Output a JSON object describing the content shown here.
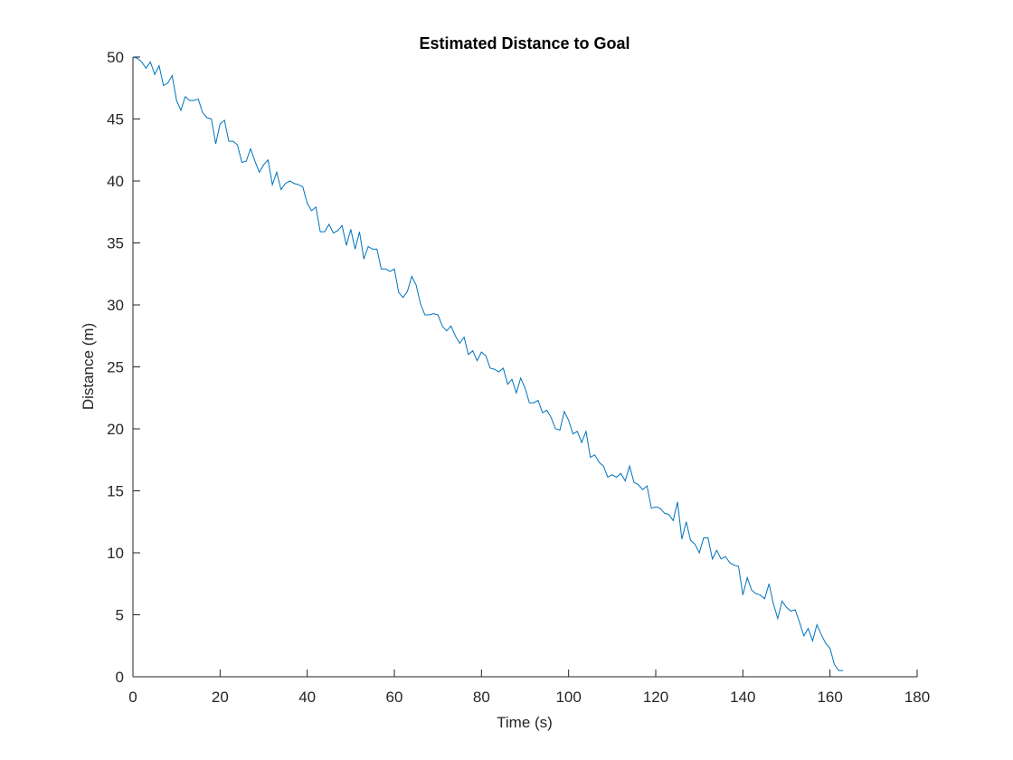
{
  "chart_data": {
    "type": "line",
    "title": "Estimated Distance to Goal",
    "xlabel": "Time (s)",
    "ylabel": "Distance (m)",
    "x": [
      0,
      1,
      2,
      3,
      4,
      5,
      6,
      7,
      8,
      9,
      10,
      11,
      12,
      13,
      14,
      15,
      16,
      17,
      18,
      19,
      20,
      21,
      22,
      23,
      24,
      25,
      26,
      27,
      28,
      29,
      30,
      31,
      32,
      33,
      34,
      35,
      36,
      37,
      38,
      39,
      40,
      41,
      42,
      43,
      44,
      45,
      46,
      47,
      48,
      49,
      50,
      51,
      52,
      53,
      54,
      55,
      56,
      57,
      58,
      59,
      60,
      61,
      62,
      63,
      64,
      65,
      66,
      67,
      68,
      69,
      70,
      71,
      72,
      73,
      74,
      75,
      76,
      77,
      78,
      79,
      80,
      81,
      82,
      83,
      84,
      85,
      86,
      87,
      88,
      89,
      90,
      91,
      92,
      93,
      94,
      95,
      96,
      97,
      98,
      99,
      100,
      101,
      102,
      103,
      104,
      105,
      106,
      107,
      108,
      109,
      110,
      111,
      112,
      113,
      114,
      115,
      116,
      117,
      118,
      119,
      120,
      121,
      122,
      123,
      124,
      125,
      126,
      127,
      128,
      129,
      130,
      131,
      132,
      133,
      134,
      135,
      136,
      137,
      138,
      139,
      140,
      141,
      142,
      143,
      144,
      145,
      146,
      147,
      148,
      149,
      150,
      151,
      152,
      153,
      154,
      155,
      156,
      157,
      158,
      159,
      160,
      161,
      162,
      163
    ],
    "series": [
      {
        "name": "Distance",
        "color": "#0072bd",
        "values": [
          50,
          49.9,
          49.6,
          49.1,
          49.6,
          48.6,
          49.3,
          47.7,
          47.9,
          48.5,
          46.5,
          45.7,
          46.8,
          46.5,
          46.5,
          46.6,
          45.5,
          45.1,
          45.0,
          43.0,
          44.6,
          44.9,
          43.2,
          43.2,
          42.9,
          41.5,
          41.6,
          42.6,
          41.6,
          40.7,
          41.3,
          41.7,
          39.7,
          40.7,
          39.3,
          39.8,
          40.0,
          39.8,
          39.7,
          39.5,
          38.2,
          37.6,
          37.9,
          35.9,
          35.9,
          36.5,
          35.8,
          36.0,
          36.4,
          34.8,
          36.1,
          34.5,
          35.9,
          33.7,
          34.7,
          34.5,
          34.5,
          32.9,
          32.9,
          32.7,
          32.9,
          31.0,
          30.6,
          31.1,
          32.3,
          31.6,
          30.1,
          29.2,
          29.2,
          29.3,
          29.2,
          28.3,
          27.9,
          28.3,
          27.5,
          26.9,
          27.4,
          26.0,
          26.3,
          25.5,
          26.2,
          25.9,
          24.9,
          24.8,
          24.6,
          24.9,
          23.6,
          24.0,
          22.9,
          24.1,
          23.3,
          22.1,
          22.1,
          22.3,
          21.3,
          21.5,
          20.9,
          20.0,
          19.9,
          21.4,
          20.7,
          19.6,
          19.8,
          18.9,
          19.8,
          17.7,
          17.9,
          17.3,
          17.0,
          16.1,
          16.3,
          16.1,
          16.4,
          15.8,
          17.0,
          15.7,
          15.5,
          15.1,
          15.4,
          13.6,
          13.7,
          13.6,
          13.2,
          13.1,
          12.6,
          14.1,
          11.1,
          12.5,
          11.0,
          10.7,
          10.0,
          11.2,
          11.2,
          9.5,
          10.2,
          9.5,
          9.7,
          9.2,
          9.0,
          8.9,
          6.6,
          8.0,
          7.0,
          6.7,
          6.6,
          6.3,
          7.5,
          5.9,
          4.7,
          6.1,
          5.6,
          5.3,
          5.4,
          4.4,
          3.3,
          3.9,
          2.9,
          4.2,
          3.4,
          2.7,
          2.3,
          1.0,
          0.5,
          0.5
        ]
      }
    ],
    "xlim": [
      0,
      180
    ],
    "xticks": [
      0,
      20,
      40,
      60,
      80,
      100,
      120,
      140,
      160,
      180
    ],
    "ylim": [
      0,
      50
    ],
    "yticks": [
      0,
      5,
      10,
      15,
      20,
      25,
      30,
      35,
      40,
      45,
      50
    ]
  }
}
